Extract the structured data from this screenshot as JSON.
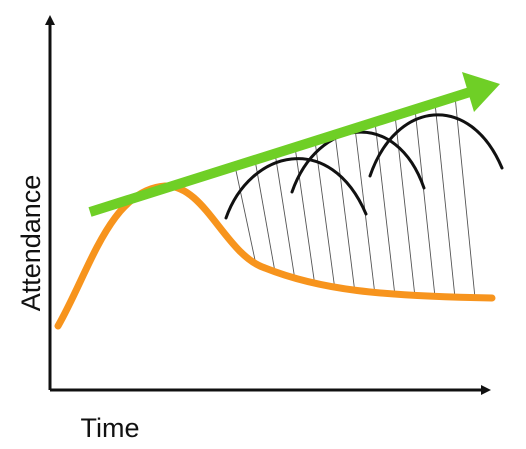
{
  "axes": {
    "y_label": "Attendance",
    "x_label": "Time"
  }
}
